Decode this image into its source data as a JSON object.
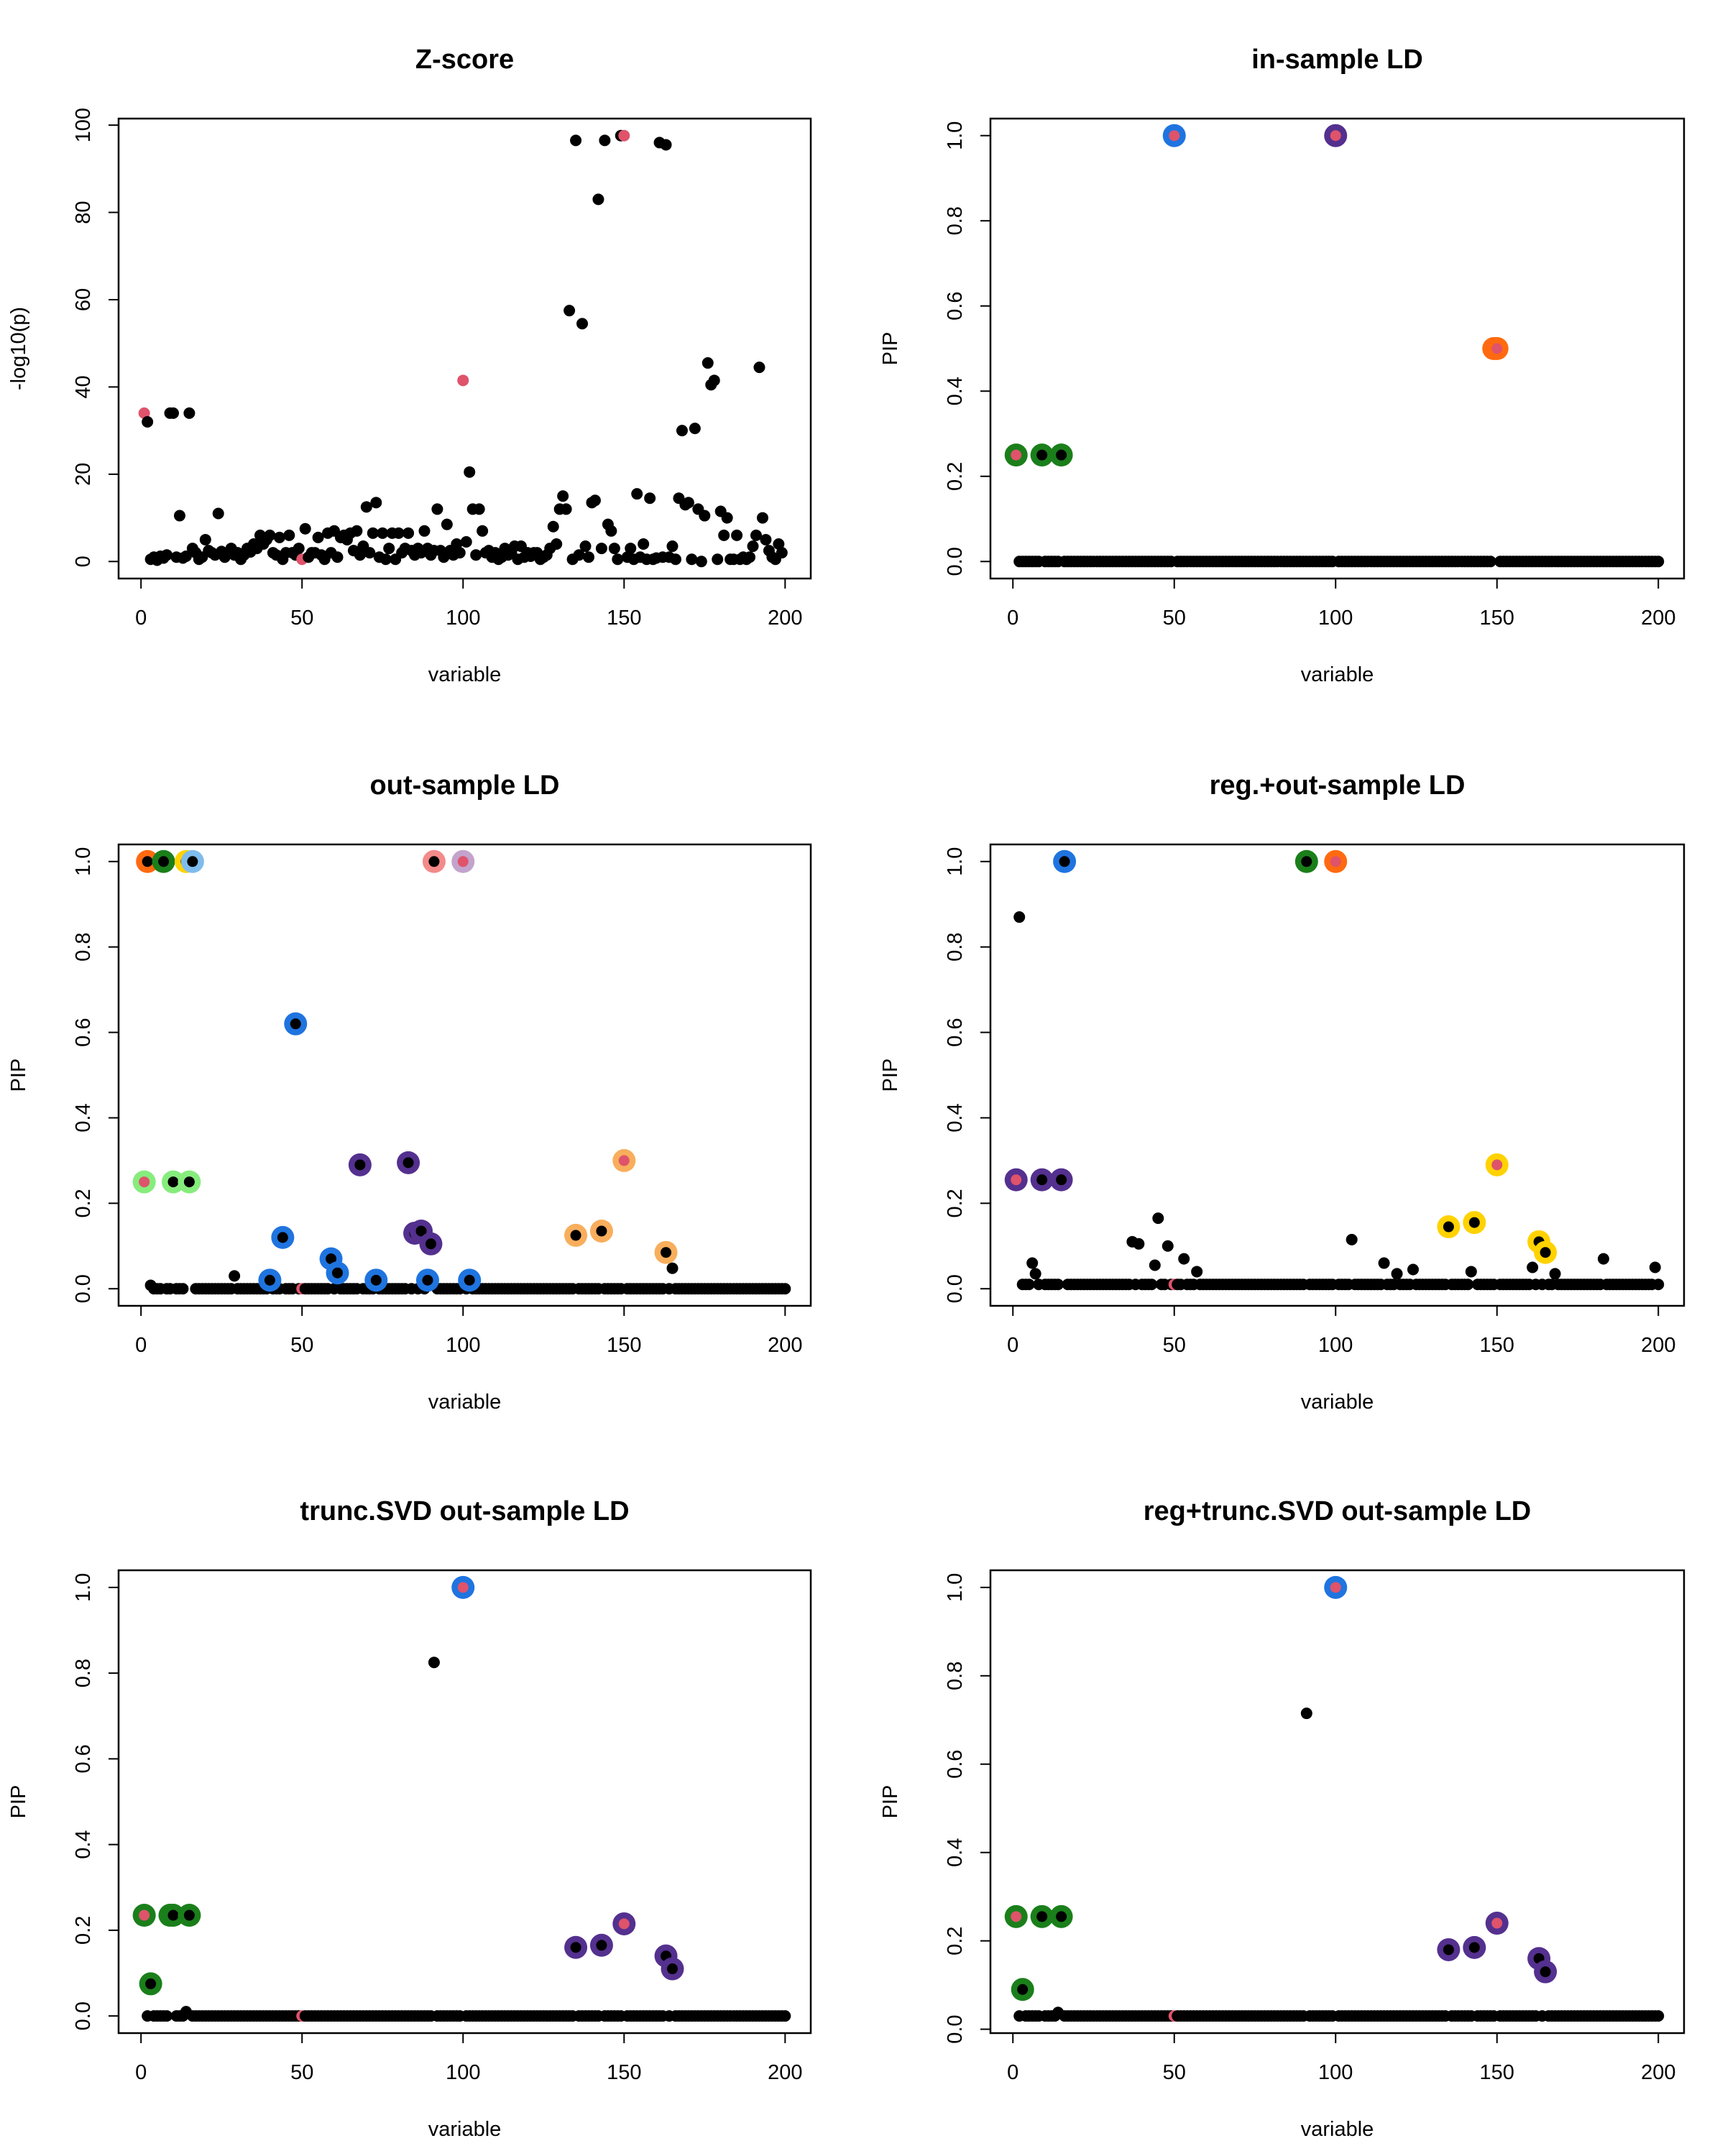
{
  "colors": {
    "point": "#000000",
    "causal": "#DF536B",
    "blue": "#1F74E0",
    "green": "#1A7F1A",
    "purple": "#54308F",
    "orange": "#FF6A10",
    "lightgreen": "#86EC7C",
    "gold": "#FFD200",
    "lightblue": "#7FBCEC",
    "pink": "#F48A8A",
    "thistle": "#C3A3CC",
    "sandybrown": "#F8AE5C"
  },
  "chart_data": [
    {
      "type": "scatter",
      "title": "Z-score",
      "xlabel": "variable",
      "ylabel": "-log10(p)",
      "xlim": [
        1,
        200
      ],
      "ylim": [
        0,
        97.6
      ],
      "xticks": [
        0,
        50,
        100,
        150,
        200
      ],
      "yticks": [
        0,
        20,
        40,
        60,
        80,
        100
      ],
      "causal_variables": [
        1,
        50,
        100,
        150
      ],
      "y": [
        34,
        32,
        0.5,
        1,
        0.3,
        1.2,
        0.8,
        1.5,
        34,
        34,
        1,
        10.5,
        0.8,
        1.2,
        34,
        3,
        2,
        0.5,
        1,
        5,
        2.5,
        2,
        1.5,
        11,
        2.3,
        1,
        2,
        3,
        1.5,
        2,
        0.5,
        1.5,
        3,
        2.2,
        4,
        3,
        6,
        4,
        5,
        6,
        2,
        1.5,
        5.5,
        0.5,
        2,
        6,
        2,
        1.5,
        3,
        0.5,
        7.5,
        1,
        2,
        2,
        5.5,
        1.5,
        0.5,
        6.5,
        2,
        7,
        1,
        5.5,
        6,
        5,
        6.5,
        2.5,
        7,
        1.5,
        3.5,
        12.5,
        2,
        6.5,
        13.5,
        1,
        6.5,
        0.5,
        3,
        6.5,
        0.5,
        6.5,
        2,
        3,
        6.5,
        2.5,
        1.5,
        3,
        2,
        7,
        3,
        1.5,
        2.5,
        12,
        2.5,
        1,
        8.5,
        2.5,
        1.5,
        4,
        2,
        41.5,
        4.5,
        20.5,
        12,
        1.5,
        12,
        7,
        2,
        2.5,
        1,
        2,
        0.5,
        1,
        3,
        1.5,
        2,
        3.5,
        0.5,
        3.5,
        1,
        2,
        1.2,
        2,
        2,
        0.5,
        1,
        1.5,
        3,
        8,
        4,
        12,
        15,
        12,
        57.5,
        0.5,
        96.5,
        1.5,
        54.5,
        3.5,
        1,
        13.5,
        14,
        83,
        3,
        96.5,
        8.5,
        7,
        3,
        0.5,
        97.6,
        97.6,
        1,
        3,
        0.5,
        15.5,
        1,
        4,
        0.5,
        14.5,
        0.5,
        0.8,
        96,
        1,
        95.5,
        1,
        3.5,
        0.5,
        14.5,
        30,
        13,
        13.5,
        0.5,
        30.5,
        12,
        0,
        10.5,
        45.5,
        40.5,
        41.5,
        0.5,
        11.5,
        6,
        10,
        0.5,
        0.5,
        6,
        0.5,
        1,
        0.5,
        1,
        3.5,
        6,
        44.5,
        10,
        5,
        2.5,
        1,
        0.5,
        4,
        2
      ]
    },
    {
      "type": "scatter",
      "title": "in-sample LD",
      "xlabel": "variable",
      "ylabel": "PIP",
      "xlim": [
        1,
        200
      ],
      "ylim": [
        0,
        1
      ],
      "xticks": [
        0,
        50,
        100,
        150,
        200
      ],
      "yticks": [
        "0.0",
        "0.2",
        "0.4",
        "0.6",
        "0.8",
        "1.0"
      ],
      "causal_variables": [
        1,
        50,
        100,
        150
      ],
      "default_y": 0,
      "points": [],
      "credible_sets": [
        {
          "color": "green",
          "points": [
            {
              "x": 1,
              "y": 0.25
            },
            {
              "x": 9,
              "y": 0.25
            },
            {
              "x": 15,
              "y": 0.25
            }
          ]
        },
        {
          "color": "blue",
          "points": [
            {
              "x": 50,
              "y": 1.0
            }
          ]
        },
        {
          "color": "purple",
          "points": [
            {
              "x": 100,
              "y": 1.0
            }
          ]
        },
        {
          "color": "orange",
          "points": [
            {
              "x": 149,
              "y": 0.5
            },
            {
              "x": 150,
              "y": 0.5
            }
          ]
        }
      ]
    },
    {
      "type": "scatter",
      "title": "out-sample LD",
      "xlabel": "variable",
      "ylabel": "PIP",
      "xlim": [
        1,
        200
      ],
      "ylim": [
        0,
        1
      ],
      "xticks": [
        0,
        50,
        100,
        150,
        200
      ],
      "yticks": [
        "0.0",
        "0.2",
        "0.4",
        "0.6",
        "0.8",
        "1.0"
      ],
      "causal_variables": [
        1,
        50,
        100,
        150
      ],
      "default_y": 0,
      "points": [
        {
          "x": 3,
          "y": 0.008
        },
        {
          "x": 29,
          "y": 0.03
        },
        {
          "x": 165,
          "y": 0.048
        }
      ],
      "credible_sets": [
        {
          "color": "orange",
          "points": [
            {
              "x": 2,
              "y": 1.0
            }
          ]
        },
        {
          "color": "green",
          "points": [
            {
              "x": 7,
              "y": 1.0
            }
          ]
        },
        {
          "color": "gold",
          "points": [
            {
              "x": 14,
              "y": 1.0
            }
          ]
        },
        {
          "color": "lightblue",
          "points": [
            {
              "x": 16,
              "y": 1.0
            }
          ]
        },
        {
          "color": "pink",
          "points": [
            {
              "x": 91,
              "y": 1.0
            }
          ]
        },
        {
          "color": "thistle",
          "points": [
            {
              "x": 100,
              "y": 1.0
            }
          ]
        },
        {
          "color": "lightgreen",
          "points": [
            {
              "x": 1,
              "y": 0.25
            },
            {
              "x": 10,
              "y": 0.25
            },
            {
              "x": 15,
              "y": 0.25
            }
          ]
        },
        {
          "color": "blue",
          "points": [
            {
              "x": 40,
              "y": 0.02
            },
            {
              "x": 44,
              "y": 0.12
            },
            {
              "x": 48,
              "y": 0.62
            },
            {
              "x": 59,
              "y": 0.07
            },
            {
              "x": 61,
              "y": 0.037
            },
            {
              "x": 73,
              "y": 0.02
            },
            {
              "x": 89,
              "y": 0.02
            },
            {
              "x": 102,
              "y": 0.02
            }
          ]
        },
        {
          "color": "purple",
          "points": [
            {
              "x": 68,
              "y": 0.29
            },
            {
              "x": 83,
              "y": 0.295
            },
            {
              "x": 85,
              "y": 0.13
            },
            {
              "x": 87,
              "y": 0.135
            },
            {
              "x": 90,
              "y": 0.105
            }
          ]
        },
        {
          "color": "sandybrown",
          "points": [
            {
              "x": 135,
              "y": 0.125
            },
            {
              "x": 143,
              "y": 0.135
            },
            {
              "x": 150,
              "y": 0.3
            },
            {
              "x": 163,
              "y": 0.085
            }
          ]
        }
      ]
    },
    {
      "type": "scatter",
      "title": "reg.+out-sample LD",
      "xlabel": "variable",
      "ylabel": "PIP",
      "xlim": [
        1,
        200
      ],
      "ylim": [
        0,
        1
      ],
      "xticks": [
        0,
        50,
        100,
        150,
        200
      ],
      "yticks": [
        "0.0",
        "0.2",
        "0.4",
        "0.6",
        "0.8",
        "1.0"
      ],
      "causal_variables": [
        1,
        50,
        100,
        150
      ],
      "default_y": 0.01,
      "points": [
        {
          "x": 2,
          "y": 0.87
        },
        {
          "x": 6,
          "y": 0.06
        },
        {
          "x": 7,
          "y": 0.035
        },
        {
          "x": 37,
          "y": 0.11
        },
        {
          "x": 39,
          "y": 0.105
        },
        {
          "x": 44,
          "y": 0.055
        },
        {
          "x": 45,
          "y": 0.165
        },
        {
          "x": 48,
          "y": 0.1
        },
        {
          "x": 53,
          "y": 0.07
        },
        {
          "x": 57,
          "y": 0.04
        },
        {
          "x": 91,
          "y": 0.03
        },
        {
          "x": 105,
          "y": 0.115
        },
        {
          "x": 115,
          "y": 0.06
        },
        {
          "x": 119,
          "y": 0.035
        },
        {
          "x": 124,
          "y": 0.045
        },
        {
          "x": 142,
          "y": 0.04
        },
        {
          "x": 161,
          "y": 0.05
        },
        {
          "x": 168,
          "y": 0.035
        },
        {
          "x": 183,
          "y": 0.07
        },
        {
          "x": 199,
          "y": 0.05
        }
      ],
      "credible_sets": [
        {
          "color": "blue",
          "points": [
            {
              "x": 16,
              "y": 1.0
            }
          ]
        },
        {
          "color": "green",
          "points": [
            {
              "x": 91,
              "y": 1.0
            }
          ]
        },
        {
          "color": "orange",
          "points": [
            {
              "x": 100,
              "y": 1.0
            }
          ]
        },
        {
          "color": "purple",
          "points": [
            {
              "x": 1,
              "y": 0.255
            },
            {
              "x": 9,
              "y": 0.255
            },
            {
              "x": 15,
              "y": 0.255
            }
          ]
        },
        {
          "color": "gold",
          "points": [
            {
              "x": 135,
              "y": 0.145
            },
            {
              "x": 143,
              "y": 0.155
            },
            {
              "x": 150,
              "y": 0.29
            },
            {
              "x": 163,
              "y": 0.11
            },
            {
              "x": 165,
              "y": 0.085
            }
          ]
        }
      ]
    },
    {
      "type": "scatter",
      "title": "trunc.SVD out-sample LD",
      "xlabel": "variable",
      "ylabel": "PIP",
      "xlim": [
        1,
        200
      ],
      "ylim": [
        0,
        1
      ],
      "xticks": [
        0,
        50,
        100,
        150,
        200
      ],
      "yticks": [
        "0.0",
        "0.2",
        "0.4",
        "0.6",
        "0.8",
        "1.0"
      ],
      "causal_variables": [
        1,
        50,
        100,
        150
      ],
      "default_y": 0,
      "points": [
        {
          "x": 91,
          "y": 0.825
        },
        {
          "x": 14,
          "y": 0.01
        },
        {
          "x": 15,
          "y": 0.012
        }
      ],
      "credible_sets": [
        {
          "color": "blue",
          "points": [
            {
              "x": 100,
              "y": 1.0
            }
          ]
        },
        {
          "color": "green",
          "points": [
            {
              "x": 1,
              "y": 0.235
            },
            {
              "x": 9,
              "y": 0.235
            },
            {
              "x": 10,
              "y": 0.235
            },
            {
              "x": 15,
              "y": 0.235
            },
            {
              "x": 3,
              "y": 0.075
            }
          ]
        },
        {
          "color": "purple",
          "points": [
            {
              "x": 135,
              "y": 0.16
            },
            {
              "x": 143,
              "y": 0.165
            },
            {
              "x": 150,
              "y": 0.215
            },
            {
              "x": 163,
              "y": 0.14
            },
            {
              "x": 165,
              "y": 0.11
            }
          ]
        }
      ]
    },
    {
      "type": "scatter",
      "title": "reg+trunc.SVD out-sample LD",
      "xlabel": "variable",
      "ylabel": "PIP",
      "xlim": [
        1,
        200
      ],
      "ylim": [
        0.03,
        1
      ],
      "xticks": [
        0,
        50,
        100,
        150,
        200
      ],
      "yticks": [
        "0.0",
        "0.2",
        "0.4",
        "0.6",
        "0.8",
        "1.0"
      ],
      "causal_variables": [
        1,
        50,
        100,
        150
      ],
      "default_y": 0.03,
      "points": [
        {
          "x": 91,
          "y": 0.715
        },
        {
          "x": 15,
          "y": 0.045
        },
        {
          "x": 14,
          "y": 0.038
        }
      ],
      "credible_sets": [
        {
          "color": "blue",
          "points": [
            {
              "x": 100,
              "y": 1.0
            }
          ]
        },
        {
          "color": "green",
          "points": [
            {
              "x": 1,
              "y": 0.255
            },
            {
              "x": 9,
              "y": 0.255
            },
            {
              "x": 15,
              "y": 0.255
            },
            {
              "x": 3,
              "y": 0.09
            }
          ]
        },
        {
          "color": "purple",
          "points": [
            {
              "x": 135,
              "y": 0.18
            },
            {
              "x": 143,
              "y": 0.185
            },
            {
              "x": 150,
              "y": 0.24
            },
            {
              "x": 163,
              "y": 0.16
            },
            {
              "x": 165,
              "y": 0.13
            }
          ]
        }
      ]
    }
  ]
}
